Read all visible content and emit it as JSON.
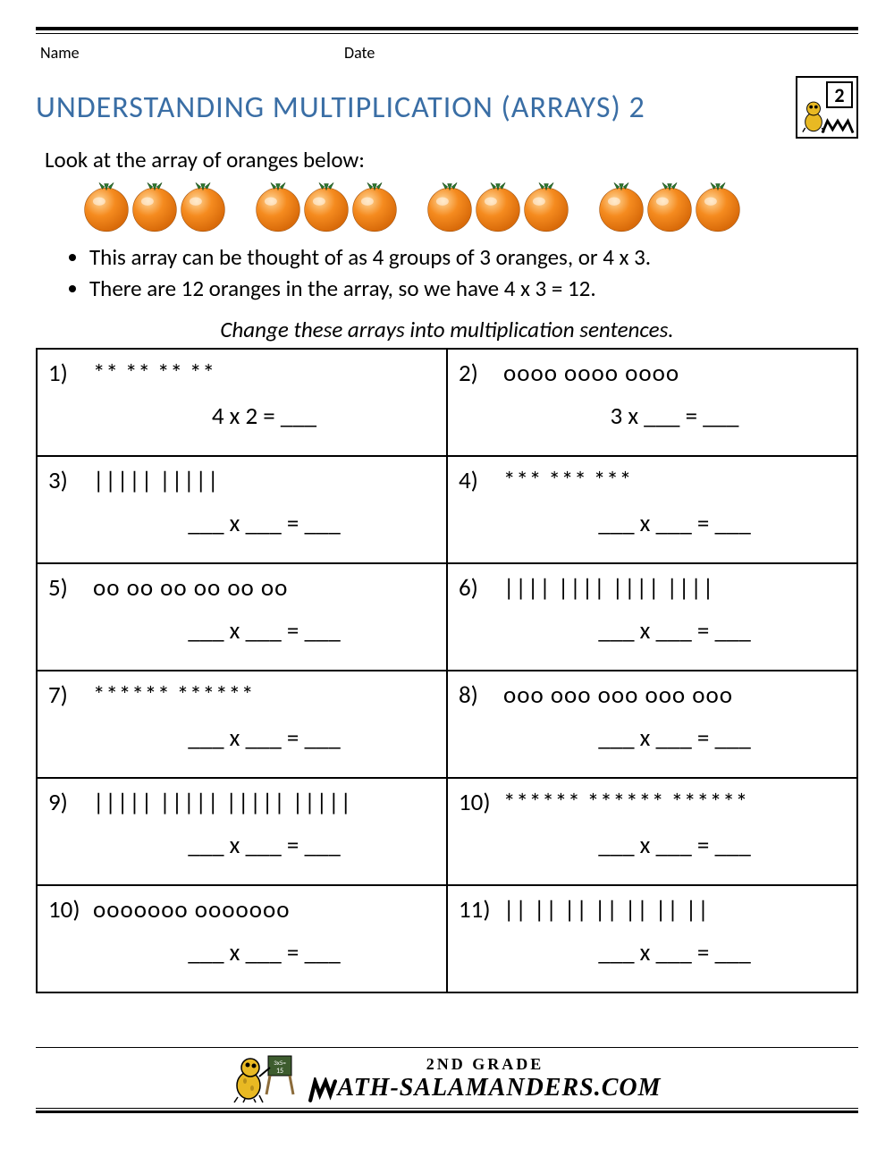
{
  "header": {
    "name_label": "Name",
    "date_label": "Date",
    "grade_badge": "2"
  },
  "title": "UNDERSTANDING MULTIPLICATION (ARRAYS) 2",
  "intro": "Look at the array of oranges below:",
  "orange_array": {
    "groups": 4,
    "per_group": 3
  },
  "bullets": [
    "This array can be thought of as 4 groups of 3 oranges, or 4 x 3.",
    "There are 12 oranges in the array, so we have 4 x 3 = 12."
  ],
  "instruction": "Change these arrays into multiplication sentences.",
  "problems": [
    {
      "n": "1)",
      "array": "**   **   **   **",
      "eq": "4 x 2 = ___"
    },
    {
      "n": "2)",
      "array": "oooo   oooo   oooo",
      "eq": "3 x ___ = ___"
    },
    {
      "n": "3)",
      "array": "|||||   |||||",
      "eq": "___ x ___ = ___"
    },
    {
      "n": "4)",
      "array": "***   ***   ***",
      "eq": "___ x ___ = ___"
    },
    {
      "n": "5)",
      "array": "oo   oo   oo   oo   oo  oo",
      "eq": "___ x ___ = ___"
    },
    {
      "n": "6)",
      "array": "||||   ||||   ||||   ||||",
      "eq": "___ x ___ = ___"
    },
    {
      "n": "7)",
      "array": "******   ******",
      "eq": "___ x ___ = ___"
    },
    {
      "n": "8)",
      "array": "ooo  ooo  ooo  ooo  ooo",
      "eq": "___ x ___ = ___"
    },
    {
      "n": "9)",
      "array": "|||||   |||||   |||||   |||||",
      "eq": "___ x ___ = ___"
    },
    {
      "n": "10)",
      "array": "******  ******  ******",
      "eq": "___ x ___ = ___"
    },
    {
      "n": "10)",
      "array": "ooooooo   ooooooo",
      "eq": "___ x ___ = ___"
    },
    {
      "n": "11)",
      "array": "||  ||  ||  ||  ||  ||  ||",
      "eq": "___ x ___ = ___"
    }
  ],
  "footer": {
    "grade_text": "2ND GRADE",
    "site_text": "ATH-SALAMANDERS.COM",
    "site_prefix": "M",
    "board_text": "3x5=\n15"
  },
  "colors": {
    "title": "#3a6ea5",
    "text": "#000000",
    "orange_fill": "#f58b1f",
    "orange_dark": "#d96b0a",
    "orange_light": "#ffd79a",
    "leaf": "#2d7a2d",
    "sal_body": "#e8b923",
    "sal_dark": "#b8901a"
  }
}
